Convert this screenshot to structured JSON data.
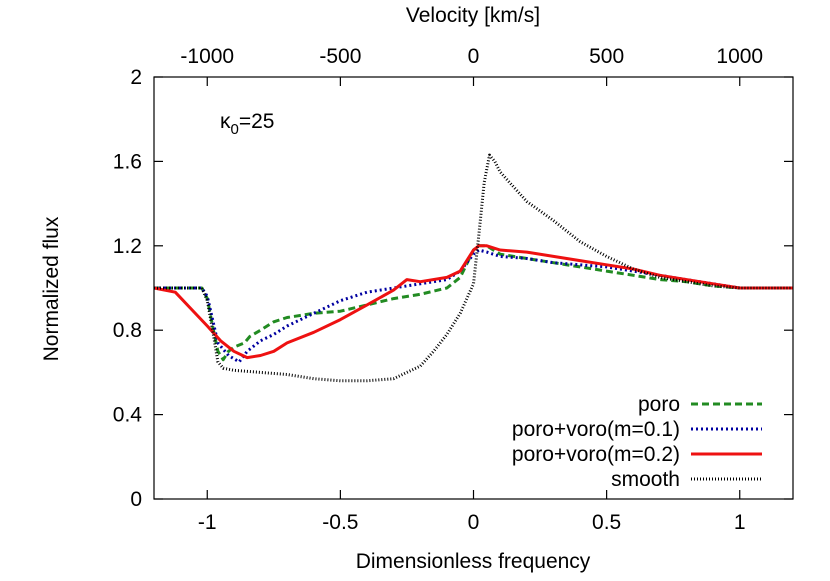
{
  "chart_data": {
    "type": "line",
    "xlabel": "Dimensionless frequency",
    "ylabel": "Normalized flux",
    "top_axis_label": "Velocity [km/s]",
    "xlim": [
      -1.2,
      1.2
    ],
    "ylim": [
      0,
      2
    ],
    "x_ticks": [
      -1,
      -0.5,
      0,
      0.5,
      1
    ],
    "x_tick_labels": [
      "-1",
      "-0.5",
      "0",
      "0.5",
      "1"
    ],
    "y_ticks": [
      0,
      0.4,
      0.8,
      1.2,
      1.6,
      2
    ],
    "y_tick_labels": [
      "0",
      "0.4",
      "0.8",
      "1.2",
      "1.6",
      "2"
    ],
    "top_ticks": [
      -1000,
      -500,
      0,
      500,
      1000
    ],
    "top_tick_labels": [
      "-1000",
      "-500",
      "0",
      "500",
      "1000"
    ],
    "annotation": {
      "kappa": "κ",
      "sub": "0",
      "rest": "=25",
      "x": -1.0,
      "y": 1.83
    },
    "grid": false,
    "legend_position": "bottom-right",
    "series": [
      {
        "name": "poro",
        "color": "#228b22",
        "dash": "7,4",
        "points": [
          [
            -1.2,
            1.0
          ],
          [
            -1.02,
            1.0
          ],
          [
            -1.0,
            0.95
          ],
          [
            -0.98,
            0.82
          ],
          [
            -0.96,
            0.7
          ],
          [
            -0.94,
            0.66
          ],
          [
            -0.92,
            0.7
          ],
          [
            -0.9,
            0.72
          ],
          [
            -0.86,
            0.74
          ],
          [
            -0.84,
            0.77
          ],
          [
            -0.8,
            0.8
          ],
          [
            -0.75,
            0.84
          ],
          [
            -0.7,
            0.86
          ],
          [
            -0.6,
            0.88
          ],
          [
            -0.5,
            0.89
          ],
          [
            -0.4,
            0.92
          ],
          [
            -0.3,
            0.95
          ],
          [
            -0.2,
            0.97
          ],
          [
            -0.1,
            1.0
          ],
          [
            -0.05,
            1.05
          ],
          [
            0.0,
            1.18
          ],
          [
            0.02,
            1.2
          ],
          [
            0.05,
            1.2
          ],
          [
            0.1,
            1.16
          ],
          [
            0.2,
            1.14
          ],
          [
            0.3,
            1.12
          ],
          [
            0.4,
            1.1
          ],
          [
            0.5,
            1.08
          ],
          [
            0.6,
            1.06
          ],
          [
            0.7,
            1.04
          ],
          [
            0.8,
            1.03
          ],
          [
            0.9,
            1.01
          ],
          [
            1.0,
            1.0
          ],
          [
            1.2,
            1.0
          ]
        ]
      },
      {
        "name": "poro+voro(m=0.1)",
        "color": "#0000a0",
        "dash": "2,3",
        "points": [
          [
            -1.2,
            1.0
          ],
          [
            -1.02,
            1.0
          ],
          [
            -1.0,
            0.96
          ],
          [
            -0.98,
            0.85
          ],
          [
            -0.96,
            0.74
          ],
          [
            -0.92,
            0.68
          ],
          [
            -0.88,
            0.65
          ],
          [
            -0.85,
            0.7
          ],
          [
            -0.8,
            0.75
          ],
          [
            -0.75,
            0.78
          ],
          [
            -0.7,
            0.82
          ],
          [
            -0.6,
            0.88
          ],
          [
            -0.5,
            0.94
          ],
          [
            -0.45,
            0.96
          ],
          [
            -0.4,
            0.98
          ],
          [
            -0.3,
            1.0
          ],
          [
            -0.2,
            1.02
          ],
          [
            -0.1,
            1.04
          ],
          [
            -0.05,
            1.08
          ],
          [
            0.0,
            1.16
          ],
          [
            0.02,
            1.18
          ],
          [
            0.05,
            1.17
          ],
          [
            0.1,
            1.15
          ],
          [
            0.2,
            1.14
          ],
          [
            0.3,
            1.12
          ],
          [
            0.4,
            1.11
          ],
          [
            0.5,
            1.1
          ],
          [
            0.6,
            1.08
          ],
          [
            0.7,
            1.06
          ],
          [
            0.8,
            1.04
          ],
          [
            0.9,
            1.02
          ],
          [
            1.0,
            1.0
          ],
          [
            1.2,
            1.0
          ]
        ]
      },
      {
        "name": "poro+voro(m=0.2)",
        "color": "#ee1111",
        "dash": "",
        "points": [
          [
            -1.2,
            1.0
          ],
          [
            -1.12,
            0.98
          ],
          [
            -1.06,
            0.9
          ],
          [
            -1.0,
            0.82
          ],
          [
            -0.95,
            0.75
          ],
          [
            -0.9,
            0.7
          ],
          [
            -0.85,
            0.67
          ],
          [
            -0.8,
            0.68
          ],
          [
            -0.75,
            0.7
          ],
          [
            -0.7,
            0.74
          ],
          [
            -0.6,
            0.79
          ],
          [
            -0.5,
            0.85
          ],
          [
            -0.4,
            0.92
          ],
          [
            -0.3,
            0.99
          ],
          [
            -0.25,
            1.04
          ],
          [
            -0.2,
            1.03
          ],
          [
            -0.1,
            1.05
          ],
          [
            -0.05,
            1.08
          ],
          [
            0.0,
            1.18
          ],
          [
            0.02,
            1.2
          ],
          [
            0.05,
            1.2
          ],
          [
            0.1,
            1.18
          ],
          [
            0.2,
            1.17
          ],
          [
            0.3,
            1.15
          ],
          [
            0.4,
            1.13
          ],
          [
            0.5,
            1.11
          ],
          [
            0.6,
            1.09
          ],
          [
            0.7,
            1.06
          ],
          [
            0.8,
            1.04
          ],
          [
            0.9,
            1.02
          ],
          [
            1.0,
            1.0
          ],
          [
            1.2,
            1.0
          ]
        ]
      },
      {
        "name": "smooth",
        "color": "#000000",
        "dash": "1,2",
        "points": [
          [
            -1.2,
            1.0
          ],
          [
            -1.02,
            1.0
          ],
          [
            -1.0,
            0.94
          ],
          [
            -0.98,
            0.8
          ],
          [
            -0.96,
            0.65
          ],
          [
            -0.94,
            0.62
          ],
          [
            -0.9,
            0.61
          ],
          [
            -0.8,
            0.6
          ],
          [
            -0.7,
            0.59
          ],
          [
            -0.6,
            0.57
          ],
          [
            -0.5,
            0.56
          ],
          [
            -0.4,
            0.56
          ],
          [
            -0.3,
            0.57
          ],
          [
            -0.25,
            0.6
          ],
          [
            -0.2,
            0.63
          ],
          [
            -0.15,
            0.7
          ],
          [
            -0.1,
            0.78
          ],
          [
            -0.05,
            0.88
          ],
          [
            0.0,
            1.02
          ],
          [
            0.02,
            1.25
          ],
          [
            0.04,
            1.5
          ],
          [
            0.06,
            1.63
          ],
          [
            0.08,
            1.6
          ],
          [
            0.1,
            1.55
          ],
          [
            0.15,
            1.48
          ],
          [
            0.2,
            1.41
          ],
          [
            0.3,
            1.32
          ],
          [
            0.4,
            1.22
          ],
          [
            0.5,
            1.15
          ],
          [
            0.6,
            1.09
          ],
          [
            0.7,
            1.05
          ],
          [
            0.8,
            1.03
          ],
          [
            0.9,
            1.01
          ],
          [
            1.0,
            1.0
          ],
          [
            1.2,
            1.0
          ]
        ]
      }
    ]
  }
}
